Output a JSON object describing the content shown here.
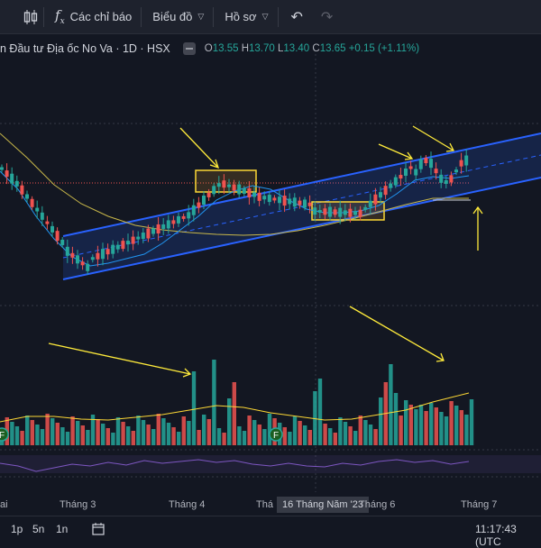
{
  "toolbar": {
    "indicators_label": "Các chỉ báo",
    "chart_label": "Biểu đồ",
    "profile_label": "Hồ sơ"
  },
  "legend": {
    "title": "n Đầu tư Địa ốc No Va · 1D · HSX",
    "o_key": "O",
    "o_val": "13.55",
    "h_key": "H",
    "h_val": "13.70",
    "l_key": "L",
    "l_val": "13.40",
    "c_key": "C",
    "c_val": "13.65",
    "change": "+0.15 (+1.11%)",
    "up_color": "#26a69a",
    "down_color": "#ef5350"
  },
  "events": {
    "marker_label": "F"
  },
  "xaxis": {
    "labels": [
      "ai",
      "Tháng 3",
      "Tháng 4",
      "Thá",
      "Tháng 6",
      "Tháng 7"
    ],
    "crosshair_label": "16 Tháng Năm '23"
  },
  "bottom": {
    "ranges": [
      "1p",
      "5n",
      "1n"
    ],
    "clock": "11:17:43 (UTC"
  }
}
